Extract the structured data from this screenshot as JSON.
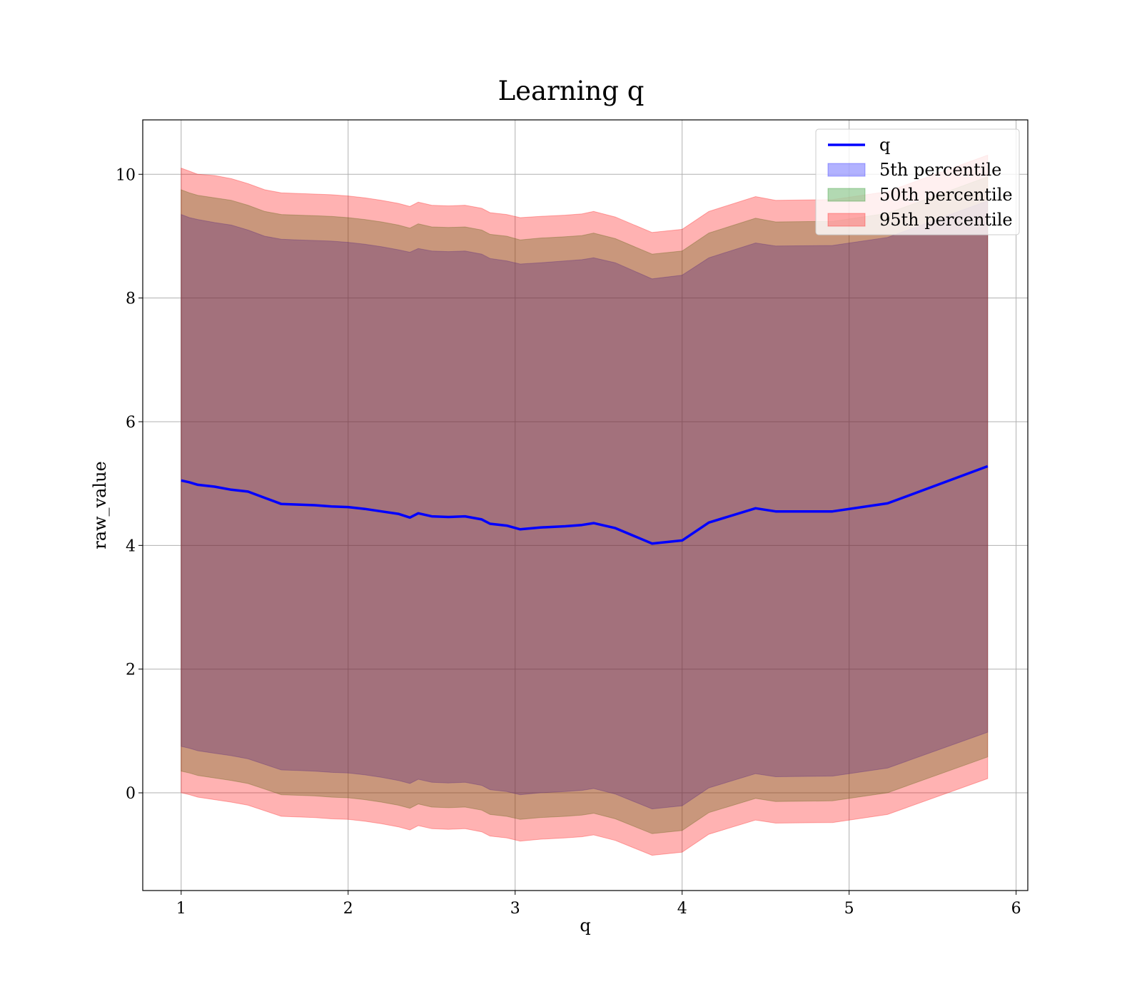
{
  "chart_data": {
    "type": "area",
    "title": "Learning q",
    "xlabel": "q",
    "ylabel": "raw_value",
    "xlim": [
      0.77,
      6.07
    ],
    "ylim": [
      -1.58,
      10.88
    ],
    "xticks": [
      1,
      2,
      3,
      4,
      5,
      6
    ],
    "yticks": [
      0,
      2,
      4,
      6,
      8,
      10
    ],
    "x_tick_labels": [
      "1",
      "2",
      "3",
      "4",
      "5",
      "6"
    ],
    "y_tick_labels": [
      "0",
      "2",
      "4",
      "6",
      "8",
      "10"
    ],
    "grid": true,
    "legend_position": "top-right",
    "legend": [
      "q",
      "5th percentile",
      "50th percentile",
      "95th percentile"
    ],
    "x": [
      1.0,
      1.05,
      1.1,
      1.2,
      1.3,
      1.4,
      1.5,
      1.6,
      1.7,
      1.8,
      1.9,
      2.0,
      2.1,
      2.2,
      2.3,
      2.37,
      2.42,
      2.5,
      2.6,
      2.7,
      2.8,
      2.85,
      2.95,
      3.03,
      3.15,
      3.3,
      3.4,
      3.47,
      3.6,
      3.82,
      4.0,
      4.16,
      4.44,
      4.56,
      4.9,
      5.23,
      5.83
    ],
    "series": [
      {
        "name": "q",
        "kind": "line",
        "color": "#0000ff",
        "values": [
          5.05,
          5.02,
          4.98,
          4.95,
          4.9,
          4.87,
          4.77,
          4.67,
          4.66,
          4.65,
          4.63,
          4.62,
          4.59,
          4.55,
          4.51,
          4.45,
          4.52,
          4.47,
          4.46,
          4.47,
          4.42,
          4.35,
          4.32,
          4.26,
          4.29,
          4.31,
          4.33,
          4.36,
          4.28,
          4.03,
          4.08,
          4.37,
          4.6,
          4.55,
          4.55,
          4.68,
          5.28
        ]
      },
      {
        "name": "5th percentile",
        "kind": "band",
        "color": "#0000ff",
        "upper": [
          9.35,
          9.3,
          9.27,
          9.22,
          9.18,
          9.1,
          9.0,
          8.95,
          8.94,
          8.93,
          8.92,
          8.9,
          8.87,
          8.83,
          8.78,
          8.74,
          8.8,
          8.76,
          8.75,
          8.76,
          8.71,
          8.64,
          8.6,
          8.55,
          8.57,
          8.6,
          8.62,
          8.65,
          8.57,
          8.31,
          8.37,
          8.65,
          8.89,
          8.84,
          8.85,
          8.98,
          9.57
        ],
        "lower": [
          0.75,
          0.72,
          0.68,
          0.64,
          0.6,
          0.55,
          0.46,
          0.37,
          0.36,
          0.35,
          0.33,
          0.32,
          0.29,
          0.25,
          0.2,
          0.15,
          0.22,
          0.17,
          0.16,
          0.17,
          0.12,
          0.05,
          0.02,
          -0.03,
          0.0,
          0.02,
          0.04,
          0.07,
          -0.02,
          -0.26,
          -0.21,
          0.08,
          0.31,
          0.26,
          0.27,
          0.4,
          0.98
        ]
      },
      {
        "name": "50th percentile",
        "kind": "band",
        "color": "#008000",
        "upper": [
          9.75,
          9.7,
          9.66,
          9.62,
          9.58,
          9.5,
          9.4,
          9.35,
          9.34,
          9.33,
          9.32,
          9.3,
          9.27,
          9.23,
          9.18,
          9.13,
          9.2,
          9.15,
          9.14,
          9.15,
          9.1,
          9.03,
          9.0,
          8.94,
          8.97,
          8.99,
          9.01,
          9.05,
          8.96,
          8.71,
          8.76,
          9.05,
          9.29,
          9.23,
          9.24,
          9.37,
          9.96
        ],
        "lower": [
          0.35,
          0.32,
          0.28,
          0.24,
          0.2,
          0.15,
          0.06,
          -0.03,
          -0.04,
          -0.05,
          -0.07,
          -0.08,
          -0.11,
          -0.15,
          -0.2,
          -0.25,
          -0.18,
          -0.23,
          -0.24,
          -0.23,
          -0.28,
          -0.35,
          -0.38,
          -0.43,
          -0.4,
          -0.38,
          -0.36,
          -0.33,
          -0.42,
          -0.66,
          -0.61,
          -0.32,
          -0.09,
          -0.14,
          -0.13,
          0.0,
          0.58
        ]
      },
      {
        "name": "95th percentile",
        "kind": "band",
        "color": "#ff0000",
        "upper": [
          10.1,
          10.05,
          10.0,
          9.98,
          9.93,
          9.85,
          9.75,
          9.7,
          9.69,
          9.68,
          9.67,
          9.65,
          9.62,
          9.58,
          9.53,
          9.48,
          9.55,
          9.5,
          9.49,
          9.5,
          9.45,
          9.38,
          9.35,
          9.3,
          9.32,
          9.34,
          9.36,
          9.4,
          9.31,
          9.06,
          9.11,
          9.4,
          9.64,
          9.58,
          9.59,
          9.72,
          10.31
        ],
        "lower": [
          0.0,
          -0.03,
          -0.07,
          -0.11,
          -0.15,
          -0.2,
          -0.29,
          -0.38,
          -0.39,
          -0.4,
          -0.42,
          -0.43,
          -0.46,
          -0.5,
          -0.55,
          -0.6,
          -0.53,
          -0.58,
          -0.59,
          -0.58,
          -0.63,
          -0.7,
          -0.73,
          -0.78,
          -0.75,
          -0.73,
          -0.71,
          -0.68,
          -0.77,
          -1.01,
          -0.96,
          -0.67,
          -0.44,
          -0.49,
          -0.48,
          -0.35,
          0.23
        ]
      }
    ]
  }
}
